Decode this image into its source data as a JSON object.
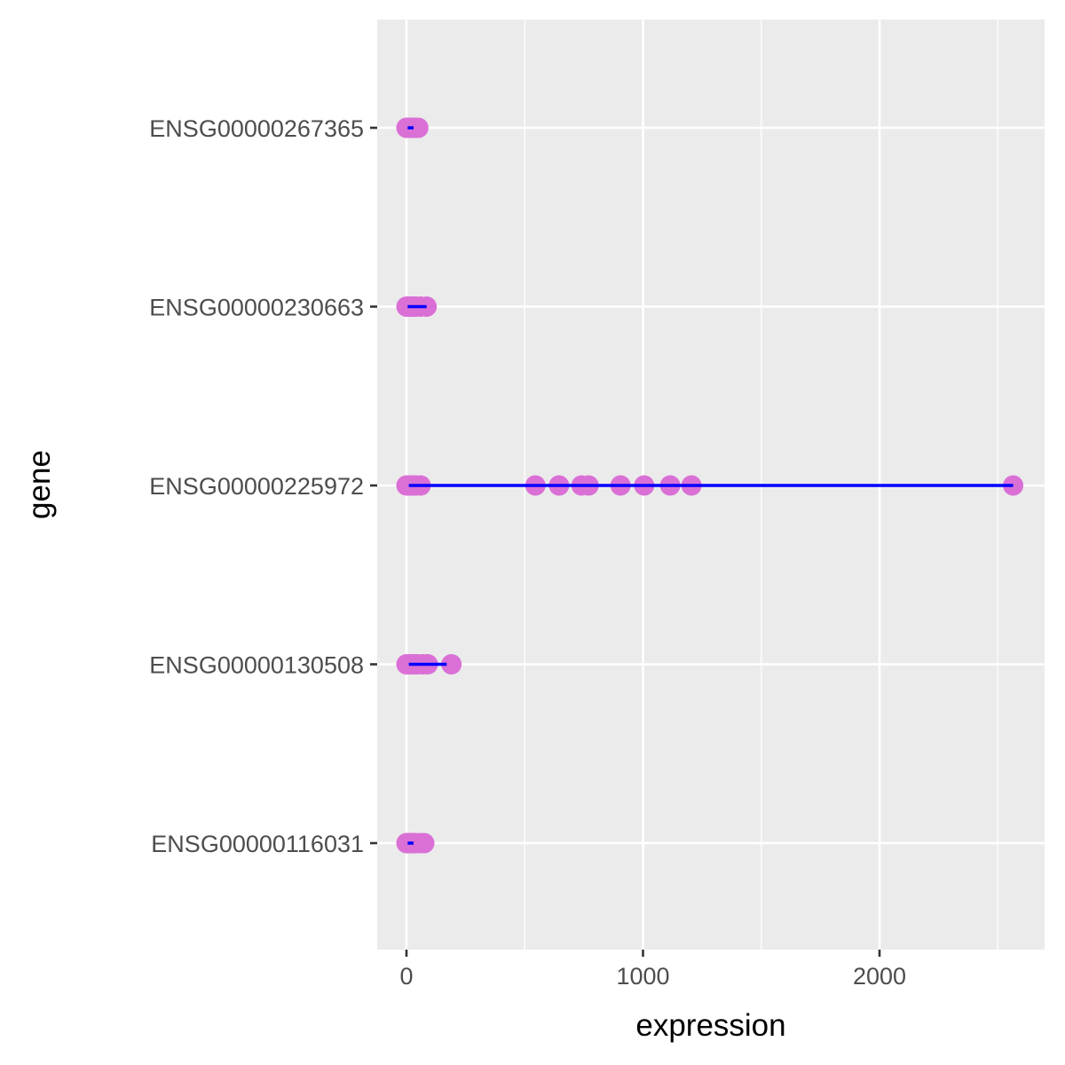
{
  "chart_data": {
    "type": "scatter",
    "xlabel": "expression",
    "ylabel": "gene",
    "xlim": [
      -120,
      2680
    ],
    "x_ticks": [
      0,
      1000,
      2000
    ],
    "x_tick_labels": [
      "0",
      "1000",
      "2000"
    ],
    "x_minor_ticks": [
      500,
      1500,
      2500
    ],
    "categories": [
      "ENSG00000267365",
      "ENSG00000230663",
      "ENSG00000225972",
      "ENSG00000130508",
      "ENSG00000116031"
    ],
    "grid": true,
    "colors": {
      "panel_background": "#EBEBEB",
      "grid_line": "#FFFFFF",
      "point": "#DA70D6",
      "range_line": "#0000FF"
    },
    "series": [
      {
        "category": "ENSG00000267365",
        "points": [
          0,
          5,
          10,
          15,
          20,
          25,
          30,
          40,
          50
        ],
        "range": [
          5,
          30
        ]
      },
      {
        "category": "ENSG00000230663",
        "points": [
          0,
          5,
          10,
          15,
          20,
          30,
          40,
          60,
          85
        ],
        "range": [
          5,
          85
        ]
      },
      {
        "category": "ENSG00000225972",
        "points": [
          0,
          10,
          20,
          30,
          40,
          60,
          545,
          645,
          740,
          770,
          905,
          1005,
          1115,
          1205,
          2565
        ],
        "range": [
          10,
          2565
        ]
      },
      {
        "category": "ENSG00000130508",
        "points": [
          0,
          10,
          20,
          30,
          40,
          50,
          70,
          90,
          190
        ],
        "range": [
          10,
          170
        ]
      },
      {
        "category": "ENSG00000116031",
        "points": [
          0,
          5,
          10,
          15,
          20,
          30,
          40,
          60,
          75
        ],
        "range": [
          5,
          30
        ]
      }
    ]
  }
}
